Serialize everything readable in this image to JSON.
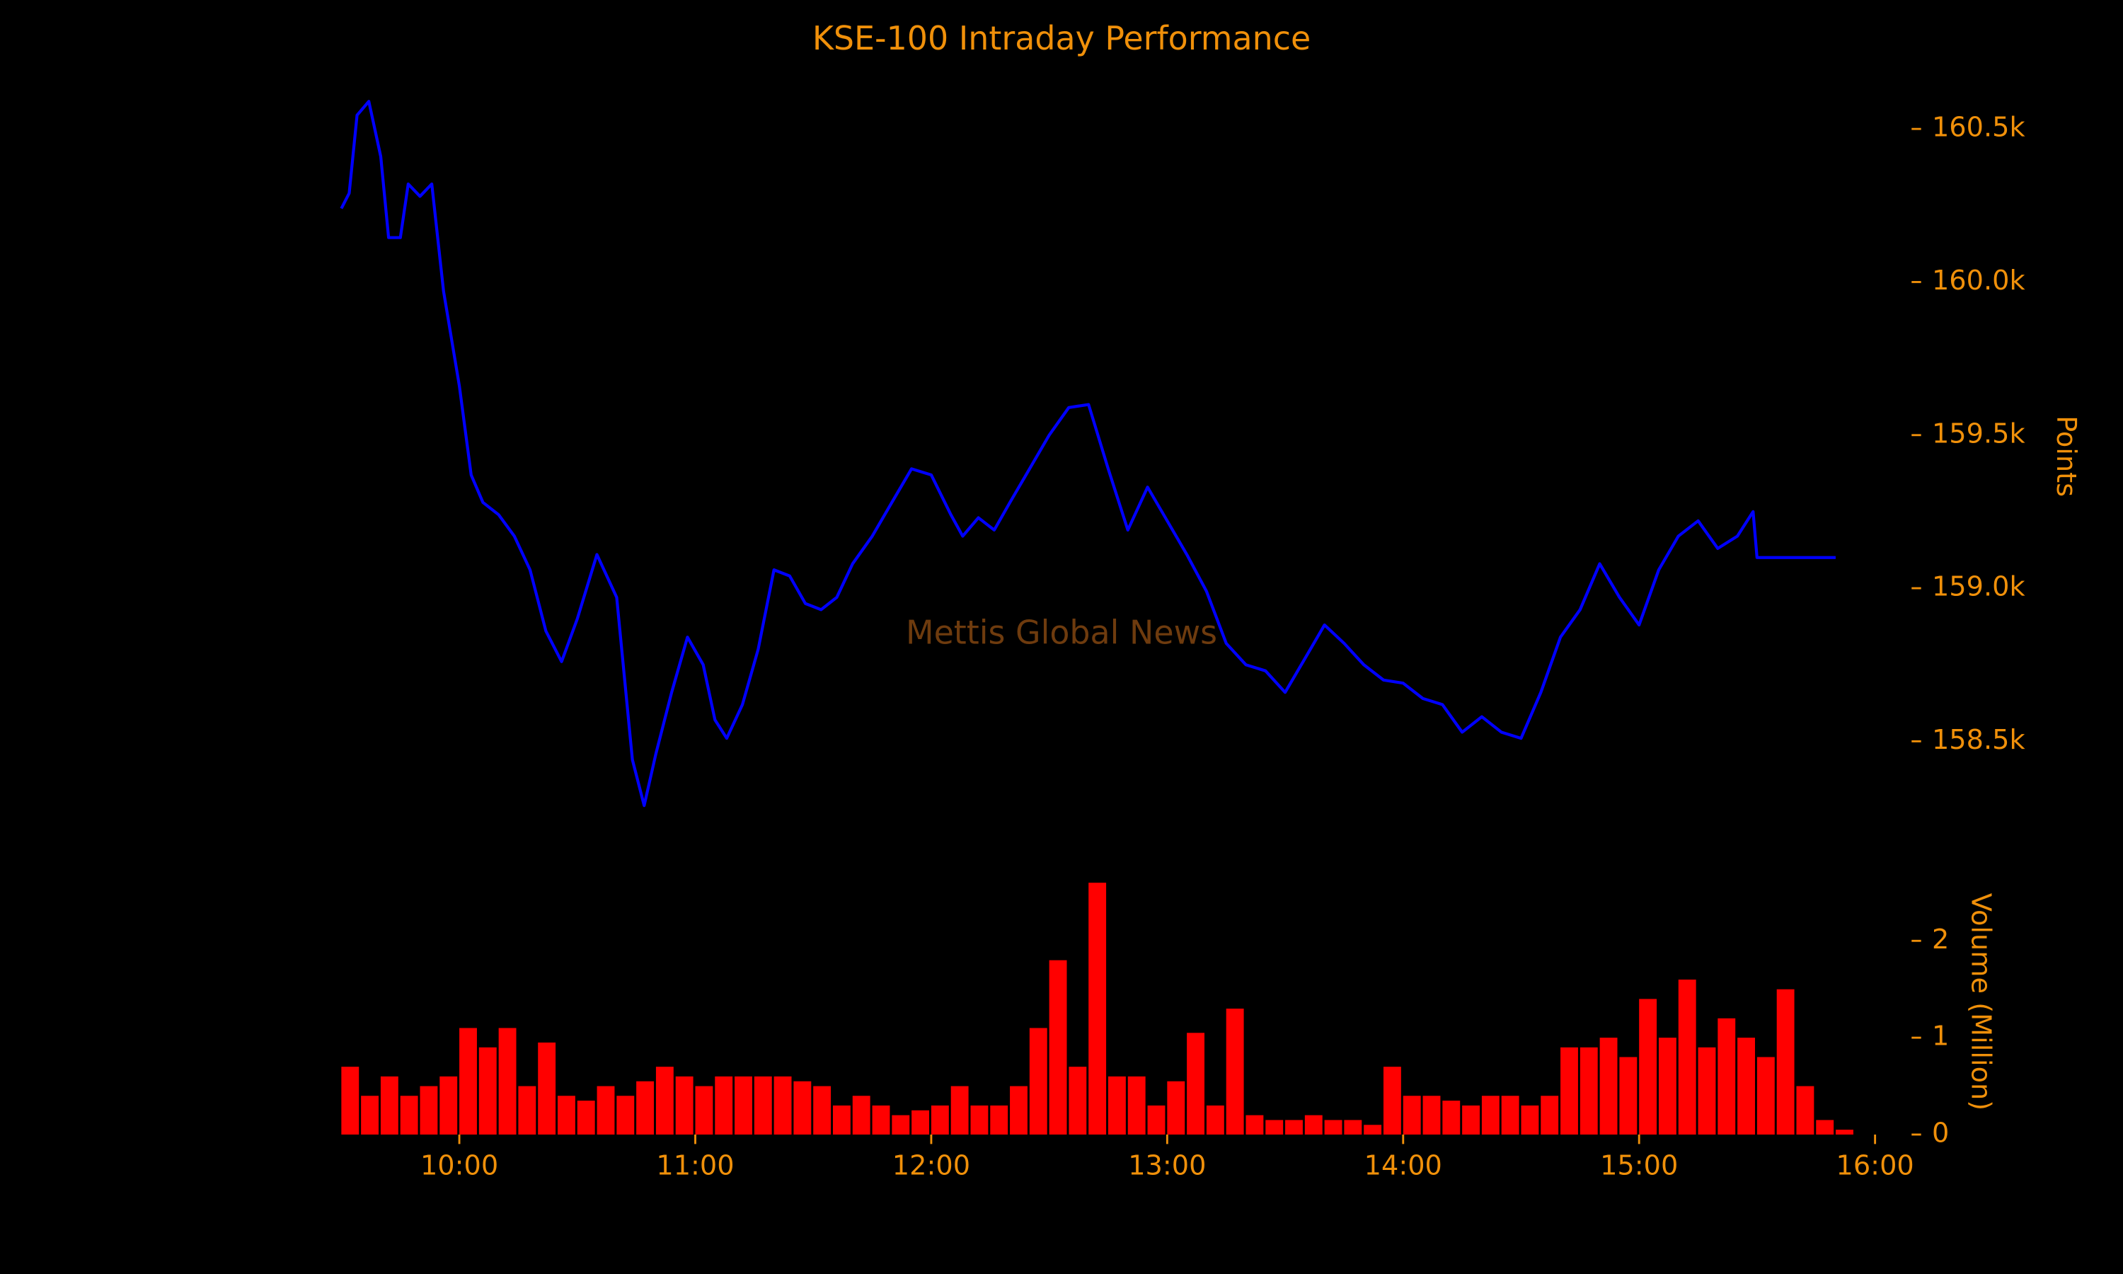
{
  "chart_data": [
    {
      "type": "line",
      "title": "KSE-100 Intraday Performance",
      "annotation": "Mettis Global News",
      "ylabel": "Points",
      "color": "#0000ff",
      "x": [
        "09:30",
        "09:32",
        "09:34",
        "09:37",
        "09:40",
        "09:42",
        "09:45",
        "09:47",
        "09:50",
        "09:53",
        "09:56",
        "10:00",
        "10:03",
        "10:06",
        "10:10",
        "10:14",
        "10:18",
        "10:22",
        "10:26",
        "10:30",
        "10:35",
        "10:40",
        "10:44",
        "10:47",
        "10:50",
        "10:54",
        "10:58",
        "11:02",
        "11:05",
        "11:08",
        "11:12",
        "11:16",
        "11:20",
        "11:24",
        "11:28",
        "11:32",
        "11:36",
        "11:40",
        "11:45",
        "11:50",
        "11:55",
        "12:00",
        "12:05",
        "12:08",
        "12:12",
        "12:16",
        "12:20",
        "12:25",
        "12:30",
        "12:35",
        "12:40",
        "12:45",
        "12:50",
        "12:55",
        "13:00",
        "13:05",
        "13:10",
        "13:15",
        "13:20",
        "13:25",
        "13:30",
        "13:35",
        "13:40",
        "13:45",
        "13:50",
        "13:55",
        "14:00",
        "14:05",
        "14:10",
        "14:15",
        "14:20",
        "14:25",
        "14:30",
        "14:35",
        "14:40",
        "14:45",
        "14:50",
        "14:55",
        "15:00",
        "15:05",
        "15:10",
        "15:15",
        "15:20",
        "15:25",
        "15:29",
        "15:30",
        "15:50"
      ],
      "values": [
        160240,
        160290,
        160545,
        160590,
        160410,
        160145,
        160145,
        160320,
        160280,
        160320,
        159970,
        159660,
        159370,
        159280,
        159240,
        159170,
        159060,
        158860,
        158760,
        158900,
        159110,
        158970,
        158440,
        158290,
        158460,
        158660,
        158840,
        158750,
        158570,
        158510,
        158620,
        158800,
        159060,
        159040,
        158950,
        158930,
        158970,
        159080,
        159170,
        159280,
        159390,
        159370,
        159240,
        159170,
        159230,
        159190,
        159280,
        159390,
        159500,
        159590,
        159600,
        159390,
        159190,
        159330,
        159220,
        159110,
        158990,
        158820,
        158750,
        158730,
        158660,
        158770,
        158880,
        158820,
        158750,
        158700,
        158690,
        158640,
        158620,
        158530,
        158580,
        158530,
        158510,
        158660,
        158840,
        158930,
        159080,
        158970,
        158880,
        159060,
        159170,
        159220,
        159130,
        159170,
        159250,
        159100,
        159100
      ],
      "ylim": [
        158100,
        160700
      ],
      "yticks": [
        {
          "value": 158500,
          "label": "158.5k"
        },
        {
          "value": 159000,
          "label": "159.0k"
        },
        {
          "value": 159500,
          "label": "159.5k"
        },
        {
          "value": 160000,
          "label": "160.0k"
        },
        {
          "value": 160500,
          "label": "160.5k"
        }
      ]
    },
    {
      "type": "bar",
      "ylabel": "Volume (Million)",
      "color": "#ff0000",
      "x": [
        "09:30",
        "09:35",
        "09:40",
        "09:45",
        "09:50",
        "09:55",
        "10:00",
        "10:05",
        "10:10",
        "10:15",
        "10:20",
        "10:25",
        "10:30",
        "10:35",
        "10:40",
        "10:45",
        "10:50",
        "10:55",
        "11:00",
        "11:05",
        "11:10",
        "11:15",
        "11:20",
        "11:25",
        "11:30",
        "11:35",
        "11:40",
        "11:45",
        "11:50",
        "11:55",
        "12:00",
        "12:05",
        "12:10",
        "12:15",
        "12:20",
        "12:25",
        "12:30",
        "12:35",
        "12:40",
        "12:45",
        "12:50",
        "12:55",
        "13:00",
        "13:05",
        "13:10",
        "13:15",
        "13:20",
        "13:25",
        "13:30",
        "13:35",
        "13:40",
        "13:45",
        "13:50",
        "13:55",
        "14:00",
        "14:05",
        "14:10",
        "14:15",
        "14:20",
        "14:25",
        "14:30",
        "14:35",
        "14:40",
        "14:45",
        "14:50",
        "14:55",
        "15:00",
        "15:05",
        "15:10",
        "15:15",
        "15:20",
        "15:25",
        "15:30",
        "15:35",
        "15:40",
        "15:45",
        "15:50"
      ],
      "values": [
        0.7,
        0.4,
        0.6,
        0.4,
        0.5,
        0.6,
        1.1,
        0.9,
        1.1,
        0.5,
        0.95,
        0.4,
        0.35,
        0.5,
        0.4,
        0.55,
        0.7,
        0.6,
        0.5,
        0.6,
        0.6,
        0.6,
        0.6,
        0.55,
        0.5,
        0.3,
        0.4,
        0.3,
        0.2,
        0.25,
        0.3,
        0.5,
        0.3,
        0.3,
        0.5,
        1.1,
        1.8,
        0.7,
        2.6,
        0.6,
        0.6,
        0.3,
        0.55,
        1.05,
        0.3,
        1.3,
        0.2,
        0.15,
        0.15,
        0.2,
        0.15,
        0.15,
        0.1,
        0.7,
        0.4,
        0.4,
        0.35,
        0.3,
        0.4,
        0.4,
        0.3,
        0.4,
        0.9,
        0.9,
        1.0,
        0.8,
        1.4,
        1.0,
        1.6,
        0.9,
        1.2,
        1.0,
        0.8,
        1.5,
        0.5,
        0.15,
        0.05
      ],
      "ylim": [
        0,
        2.6
      ],
      "yticks": [
        0,
        1,
        2
      ],
      "xlim": [
        "09:30",
        "16:00"
      ],
      "xticks": [
        "10:00",
        "11:00",
        "12:00",
        "13:00",
        "14:00",
        "15:00",
        "16:00"
      ]
    }
  ]
}
